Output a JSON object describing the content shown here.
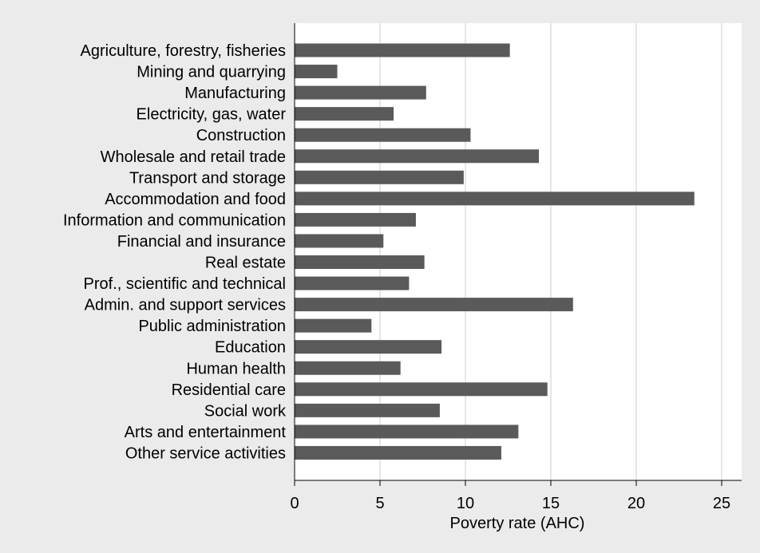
{
  "chart_data": {
    "type": "bar",
    "orientation": "horizontal",
    "categories": [
      "Agriculture, forestry, fisheries",
      "Mining and quarrying",
      "Manufacturing",
      "Electricity, gas, water",
      "Construction",
      "Wholesale and retail trade",
      "Transport and storage",
      "Accommodation and food",
      "Information and communication",
      "Financial and insurance",
      "Real estate",
      "Prof., scientific and technical",
      "Admin. and support services",
      "Public administration",
      "Education",
      "Human health",
      "Residential care",
      "Social work",
      "Arts and entertainment",
      "Other service activities"
    ],
    "values": [
      12.6,
      2.5,
      7.7,
      5.8,
      10.3,
      14.3,
      9.9,
      23.4,
      7.1,
      5.2,
      7.6,
      6.7,
      16.3,
      4.5,
      8.6,
      6.2,
      14.8,
      8.5,
      13.1,
      12.1
    ],
    "xlabel": "Poverty rate (AHC)",
    "xlim": [
      0,
      26
    ],
    "xticks": [
      0,
      5,
      10,
      15,
      20,
      25
    ],
    "grid": true,
    "colors": {
      "bar": "#5a5a5a",
      "plot_background": "#ffffff",
      "outer_background": "#ebebeb",
      "grid": "#e6e6e6",
      "axis": "#000000"
    }
  }
}
